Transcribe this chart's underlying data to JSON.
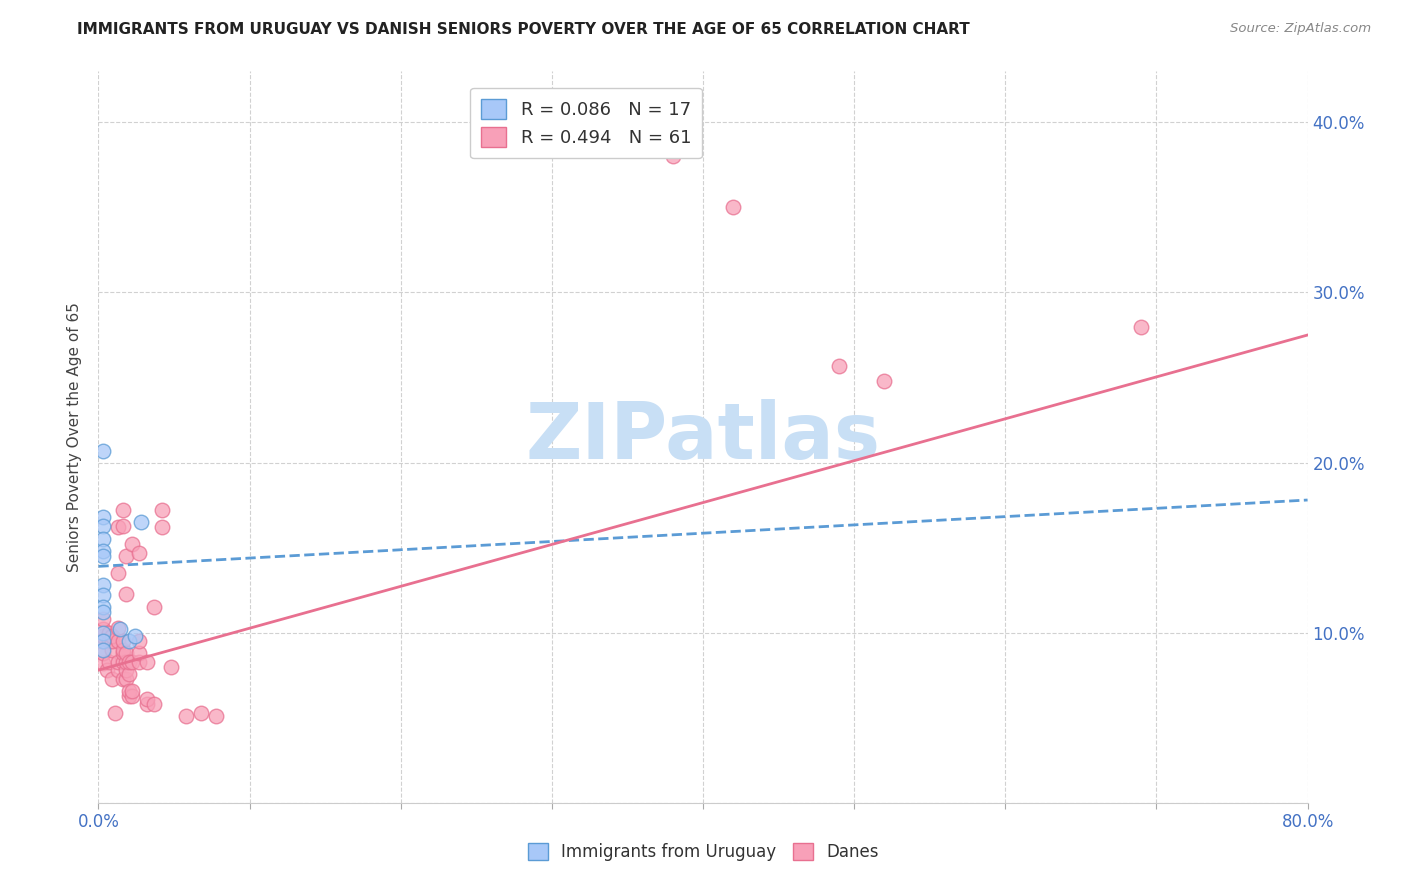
{
  "title": "IMMIGRANTS FROM URUGUAY VS DANISH SENIORS POVERTY OVER THE AGE OF 65 CORRELATION CHART",
  "source": "Source: ZipAtlas.com",
  "ylabel": "Seniors Poverty Over the Age of 65",
  "yticks": [
    0.0,
    0.1,
    0.2,
    0.3,
    0.4
  ],
  "ytick_labels": [
    "",
    "10.0%",
    "20.0%",
    "30.0%",
    "40.0%"
  ],
  "xticks": [
    0.0,
    0.1,
    0.2,
    0.3,
    0.4,
    0.5,
    0.6,
    0.7,
    0.8
  ],
  "xtick_labels_show": [
    "0.0%",
    "",
    "",
    "",
    "",
    "",
    "",
    "",
    "80.0%"
  ],
  "color_uruguay": "#a8c8f8",
  "color_danes": "#f8a0b8",
  "color_line_uruguay": "#5b9bd5",
  "color_line_danes": "#e87090",
  "watermark_color": "#c8dff5",
  "background_color": "#ffffff",
  "scatter_uruguay": [
    [
      0.003,
      0.207
    ],
    [
      0.003,
      0.168
    ],
    [
      0.003,
      0.163
    ],
    [
      0.003,
      0.155
    ],
    [
      0.003,
      0.148
    ],
    [
      0.003,
      0.145
    ],
    [
      0.003,
      0.128
    ],
    [
      0.003,
      0.122
    ],
    [
      0.003,
      0.115
    ],
    [
      0.003,
      0.112
    ],
    [
      0.003,
      0.1
    ],
    [
      0.003,
      0.095
    ],
    [
      0.003,
      0.09
    ],
    [
      0.014,
      0.102
    ],
    [
      0.02,
      0.095
    ],
    [
      0.024,
      0.098
    ],
    [
      0.028,
      0.165
    ]
  ],
  "scatter_danes": [
    [
      0.003,
      0.082
    ],
    [
      0.003,
      0.088
    ],
    [
      0.003,
      0.095
    ],
    [
      0.003,
      0.098
    ],
    [
      0.003,
      0.102
    ],
    [
      0.003,
      0.108
    ],
    [
      0.006,
      0.078
    ],
    [
      0.007,
      0.083
    ],
    [
      0.007,
      0.095
    ],
    [
      0.007,
      0.1
    ],
    [
      0.009,
      0.073
    ],
    [
      0.009,
      0.09
    ],
    [
      0.009,
      0.095
    ],
    [
      0.009,
      0.098
    ],
    [
      0.011,
      0.053
    ],
    [
      0.013,
      0.078
    ],
    [
      0.013,
      0.083
    ],
    [
      0.013,
      0.095
    ],
    [
      0.013,
      0.103
    ],
    [
      0.013,
      0.135
    ],
    [
      0.013,
      0.162
    ],
    [
      0.016,
      0.073
    ],
    [
      0.016,
      0.083
    ],
    [
      0.016,
      0.088
    ],
    [
      0.016,
      0.09
    ],
    [
      0.016,
      0.095
    ],
    [
      0.016,
      0.163
    ],
    [
      0.016,
      0.172
    ],
    [
      0.018,
      0.073
    ],
    [
      0.018,
      0.078
    ],
    [
      0.018,
      0.083
    ],
    [
      0.018,
      0.088
    ],
    [
      0.018,
      0.123
    ],
    [
      0.018,
      0.145
    ],
    [
      0.02,
      0.063
    ],
    [
      0.02,
      0.066
    ],
    [
      0.02,
      0.076
    ],
    [
      0.02,
      0.083
    ],
    [
      0.022,
      0.063
    ],
    [
      0.022,
      0.066
    ],
    [
      0.022,
      0.083
    ],
    [
      0.022,
      0.152
    ],
    [
      0.027,
      0.083
    ],
    [
      0.027,
      0.088
    ],
    [
      0.027,
      0.095
    ],
    [
      0.027,
      0.147
    ],
    [
      0.032,
      0.058
    ],
    [
      0.032,
      0.061
    ],
    [
      0.032,
      0.083
    ],
    [
      0.037,
      0.058
    ],
    [
      0.037,
      0.115
    ],
    [
      0.042,
      0.162
    ],
    [
      0.042,
      0.172
    ],
    [
      0.048,
      0.08
    ],
    [
      0.058,
      0.051
    ],
    [
      0.068,
      0.053
    ],
    [
      0.078,
      0.051
    ],
    [
      0.38,
      0.38
    ],
    [
      0.42,
      0.35
    ],
    [
      0.49,
      0.257
    ],
    [
      0.52,
      0.248
    ],
    [
      0.69,
      0.28
    ]
  ],
  "line_uruguay": [
    [
      0.0,
      0.139
    ],
    [
      0.8,
      0.178
    ]
  ],
  "line_danes": [
    [
      0.0,
      0.078
    ],
    [
      0.8,
      0.275
    ]
  ]
}
